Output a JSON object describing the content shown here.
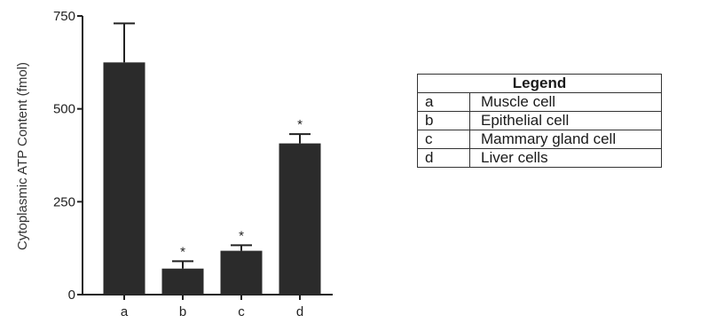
{
  "chart_data": {
    "type": "bar",
    "categories": [
      "a",
      "b",
      "c",
      "d"
    ],
    "values": [
      625,
      70,
      118,
      407
    ],
    "errors": [
      105,
      20,
      15,
      25
    ],
    "significance": [
      "",
      "*",
      "*",
      "*"
    ],
    "title": "",
    "xlabel": "",
    "ylabel": "Cytoplasmic ATP Content (fmol)",
    "ylim": [
      0,
      750
    ],
    "yticks": [
      0,
      250,
      500,
      750
    ],
    "grid": false,
    "bar_color": "#2b2b2b"
  },
  "legend": {
    "title": "Legend",
    "entries": [
      {
        "key": "a",
        "label": "Muscle cell"
      },
      {
        "key": "b",
        "label": "Epithelial cell"
      },
      {
        "key": "c",
        "label": "Mammary gland cell"
      },
      {
        "key": "d",
        "label": "Liver cells"
      }
    ]
  }
}
